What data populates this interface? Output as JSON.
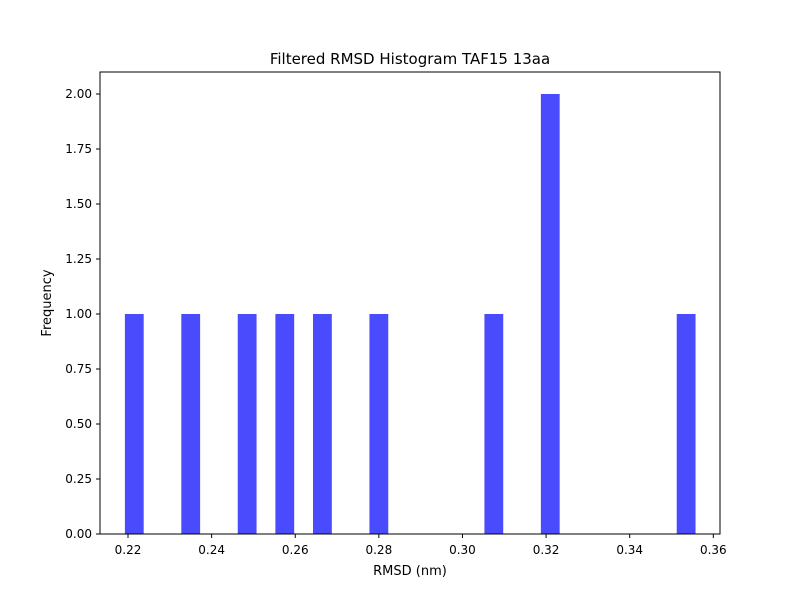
{
  "chart_data": {
    "type": "histogram",
    "title": "Filtered RMSD Histogram TAF15 13aa",
    "xlabel": "RMSD (nm)",
    "ylabel": "Frequency",
    "xlim": [
      0.2133,
      0.3616
    ],
    "ylim": [
      0,
      2.1
    ],
    "bin_width": 0.0045,
    "color": "#4b4bfe",
    "bins": [
      {
        "x": 0.2215,
        "value": 1
      },
      {
        "x": 0.235,
        "value": 1
      },
      {
        "x": 0.2485,
        "value": 1
      },
      {
        "x": 0.2575,
        "value": 1
      },
      {
        "x": 0.2665,
        "value": 1
      },
      {
        "x": 0.28,
        "value": 1
      },
      {
        "x": 0.3075,
        "value": 1
      },
      {
        "x": 0.321,
        "value": 2
      },
      {
        "x": 0.3535,
        "value": 1
      }
    ],
    "xticks": [
      {
        "value": 0.22,
        "label": "0.22"
      },
      {
        "value": 0.24,
        "label": "0.24"
      },
      {
        "value": 0.26,
        "label": "0.26"
      },
      {
        "value": 0.28,
        "label": "0.28"
      },
      {
        "value": 0.3,
        "label": "0.30"
      },
      {
        "value": 0.32,
        "label": "0.32"
      },
      {
        "value": 0.34,
        "label": "0.34"
      },
      {
        "value": 0.36,
        "label": "0.36"
      }
    ],
    "yticks": [
      {
        "value": 0.0,
        "label": "0.00"
      },
      {
        "value": 0.25,
        "label": "0.25"
      },
      {
        "value": 0.5,
        "label": "0.50"
      },
      {
        "value": 0.75,
        "label": "0.75"
      },
      {
        "value": 1.0,
        "label": "1.00"
      },
      {
        "value": 1.25,
        "label": "1.25"
      },
      {
        "value": 1.5,
        "label": "1.50"
      },
      {
        "value": 1.75,
        "label": "1.75"
      },
      {
        "value": 2.0,
        "label": "2.00"
      }
    ],
    "grid": false,
    "legend": false
  }
}
